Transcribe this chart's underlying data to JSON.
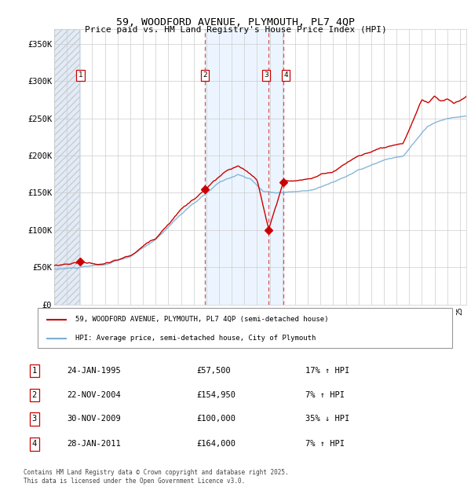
{
  "title": "59, WOODFORD AVENUE, PLYMOUTH, PL7 4QP",
  "subtitle": "Price paid vs. HM Land Registry's House Price Index (HPI)",
  "ylabel_ticks": [
    "£0",
    "£50K",
    "£100K",
    "£150K",
    "£200K",
    "£250K",
    "£300K",
    "£350K"
  ],
  "ytick_values": [
    0,
    50000,
    100000,
    150000,
    200000,
    250000,
    300000,
    350000
  ],
  "ylim": [
    0,
    370000
  ],
  "xlim_start": 1993.0,
  "xlim_end": 2025.5,
  "transactions": [
    {
      "num": 1,
      "date": "24-JAN-1995",
      "price": 57500,
      "pct": "17%",
      "dir": "↑",
      "year": 1995.07
    },
    {
      "num": 2,
      "date": "22-NOV-2004",
      "price": 154950,
      "pct": "7%",
      "dir": "↑",
      "year": 2004.9
    },
    {
      "num": 3,
      "date": "30-NOV-2009",
      "price": 100000,
      "pct": "35%",
      "dir": "↓",
      "year": 2009.92
    },
    {
      "num": 4,
      "date": "28-JAN-2011",
      "price": 164000,
      "pct": "7%",
      "dir": "↑",
      "year": 2011.08
    }
  ],
  "legend_line1": "59, WOODFORD AVENUE, PLYMOUTH, PL7 4QP (semi-detached house)",
  "legend_line2": "HPI: Average price, semi-detached house, City of Plymouth",
  "footnote": "Contains HM Land Registry data © Crown copyright and database right 2025.\nThis data is licensed under the Open Government Licence v3.0.",
  "red_color": "#cc0000",
  "blue_color": "#7aafd4",
  "grid_color": "#cccccc",
  "dashed_line_color": "#dd3333"
}
